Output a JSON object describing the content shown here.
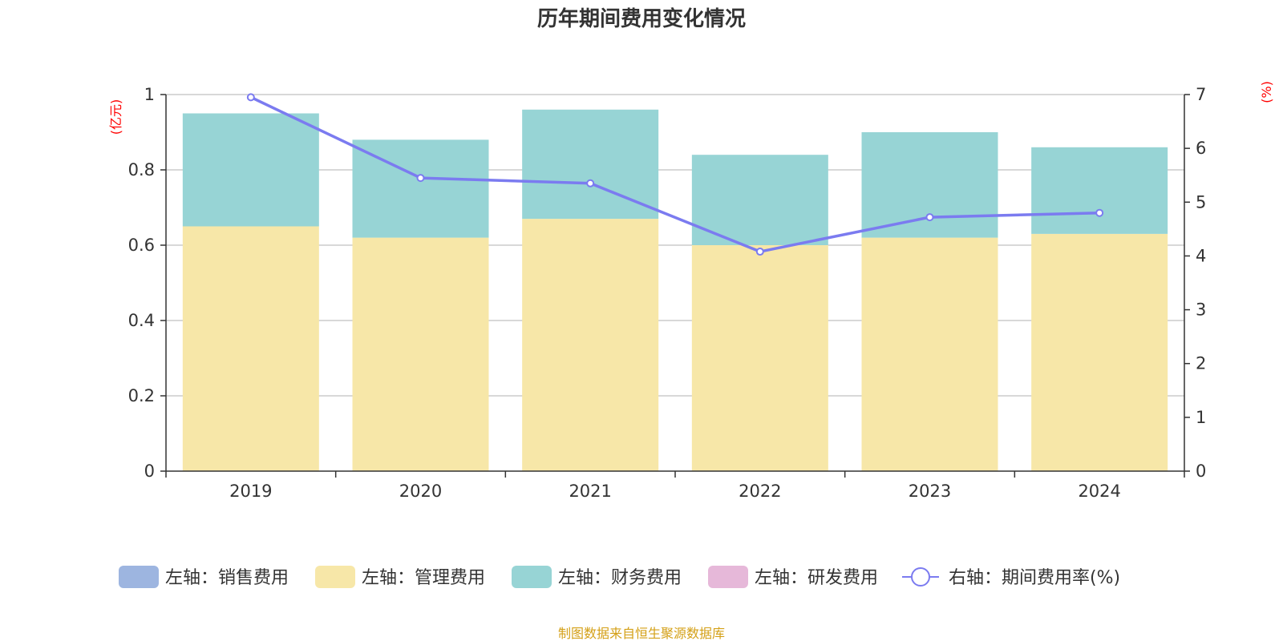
{
  "chart_data": {
    "type": "bar",
    "title": "历年期间费用变化情况",
    "left_unit": "(亿元)",
    "right_unit": "(%)",
    "categories": [
      "2019",
      "2020",
      "2021",
      "2022",
      "2023",
      "2024"
    ],
    "left_ylim": [
      0,
      1
    ],
    "left_ticks": [
      "0",
      "0.2",
      "0.4",
      "0.6",
      "0.8",
      "1"
    ],
    "left_tick_values": [
      0,
      0.2,
      0.4,
      0.6,
      0.8,
      1
    ],
    "right_ylim": [
      0,
      7
    ],
    "right_ticks": [
      "0",
      "1",
      "2",
      "3",
      "4",
      "5",
      "6",
      "7"
    ],
    "right_tick_values": [
      0,
      1,
      2,
      3,
      4,
      5,
      6,
      7
    ],
    "stacked": true,
    "grid": true,
    "legend_position": "bottom",
    "series": [
      {
        "name": "左轴：销售费用",
        "kind": "bar",
        "axis": "left",
        "color": "#9db5e0",
        "values": [
          0,
          0,
          0,
          0,
          0,
          0
        ]
      },
      {
        "name": "左轴：管理费用",
        "kind": "bar",
        "axis": "left",
        "color": "#f7e7a8",
        "values": [
          0.65,
          0.62,
          0.67,
          0.6,
          0.62,
          0.63
        ]
      },
      {
        "name": "左轴：财务费用",
        "kind": "bar",
        "axis": "left",
        "color": "#97d4d5",
        "values": [
          0.3,
          0.26,
          0.29,
          0.24,
          0.28,
          0.23
        ]
      },
      {
        "name": "左轴：研发费用",
        "kind": "bar",
        "axis": "left",
        "color": "#e6b8d9",
        "values": [
          0,
          0,
          0,
          0,
          0,
          0
        ]
      },
      {
        "name": "右轴：期间费用率(%)",
        "kind": "line",
        "axis": "right",
        "color": "#7b7bf0",
        "values": [
          6.95,
          5.45,
          5.35,
          4.08,
          4.72,
          4.8
        ]
      }
    ]
  },
  "source_text": "制图数据来自恒生聚源数据库"
}
